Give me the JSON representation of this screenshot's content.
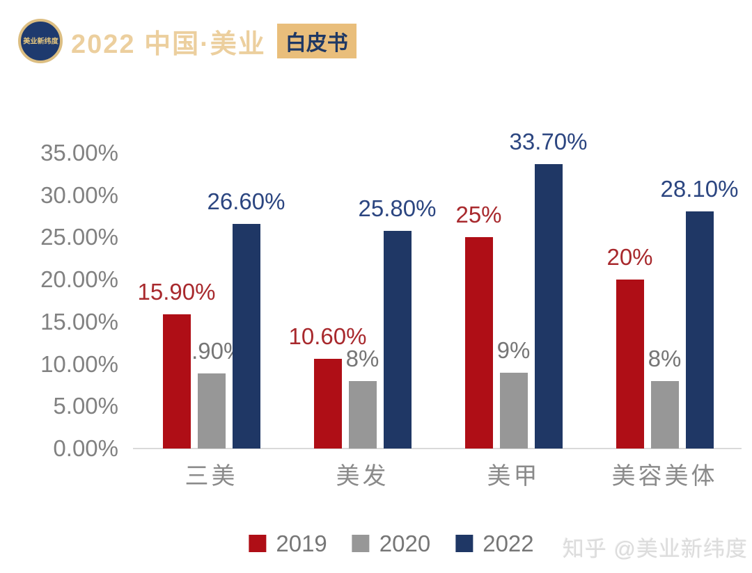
{
  "header": {
    "logo_text": "美业新纬度",
    "title": "2022 中国·美业",
    "badge": "白皮书"
  },
  "watermark": "知乎 @美业新纬度",
  "colors": {
    "background": "#ffffff",
    "brand_navy": "#1e3a6e",
    "brand_gold": "#e9be7b",
    "axis_text": "#818181",
    "axis_line": "#d9d9d9",
    "category_text": "#8a8a8a",
    "legend_text": "#767676",
    "watermark_text": "#dcdcdc"
  },
  "chart_data": {
    "type": "bar",
    "title": "",
    "xlabel": "",
    "ylabel": "",
    "grid": false,
    "legend_position": "bottom",
    "ylim": [
      0,
      35
    ],
    "categories": [
      "三美",
      "美发",
      "美甲",
      "美容美体"
    ],
    "series": [
      {
        "name": "2019",
        "color": "#af0e16",
        "label_color": "#a8292d",
        "values": [
          15.9,
          10.6,
          25,
          20
        ],
        "labels": [
          "15.90%",
          "10.60%",
          "25%",
          "20%"
        ]
      },
      {
        "name": "2020",
        "color": "#979797",
        "label_color": "#757575",
        "values": [
          8.9,
          8,
          9,
          8
        ],
        "labels": [
          "8.90%",
          "8%",
          "9%",
          "8%"
        ]
      },
      {
        "name": "2022",
        "color": "#1f3765",
        "label_color": "#2b4580",
        "values": [
          26.6,
          25.8,
          33.7,
          28.1
        ],
        "labels": [
          "26.60%",
          "25.80%",
          "33.70%",
          "28.10%"
        ]
      }
    ],
    "yticks": [
      {
        "value": 35,
        "label": "35.00%"
      },
      {
        "value": 30,
        "label": "30.00%"
      },
      {
        "value": 25,
        "label": "25.00%"
      },
      {
        "value": 20,
        "label": "20.00%"
      },
      {
        "value": 15,
        "label": "15.00%"
      },
      {
        "value": 10,
        "label": "10.00%"
      },
      {
        "value": 5,
        "label": "5.00%"
      },
      {
        "value": 0,
        "label": "0.00%"
      }
    ]
  }
}
